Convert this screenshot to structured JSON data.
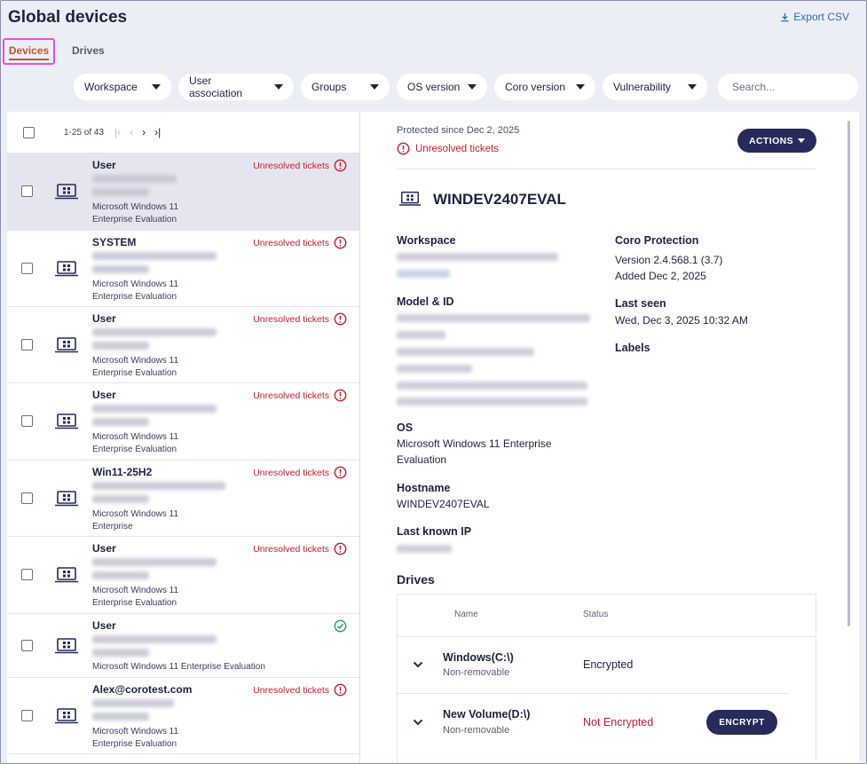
{
  "page": {
    "title": "Global devices",
    "export_label": "Export CSV"
  },
  "tabs": [
    {
      "label": "Devices"
    },
    {
      "label": "Drives"
    }
  ],
  "filters": [
    {
      "label": "Workspace"
    },
    {
      "label": "User association"
    },
    {
      "label": "Groups"
    },
    {
      "label": "OS version"
    },
    {
      "label": "Coro version"
    },
    {
      "label": "Vulnerability"
    }
  ],
  "search": {
    "placeholder": "Search..."
  },
  "pager": {
    "range": "1-25 of 43"
  },
  "devices": [
    {
      "owner": "User",
      "status": "Unresolved tickets",
      "os1": "Microsoft Windows 11",
      "os2": "Enterprise Evaluation"
    },
    {
      "owner": "SYSTEM",
      "status": "Unresolved tickets",
      "os1": "Microsoft Windows 11",
      "os2": "Enterprise Evaluation"
    },
    {
      "owner": "User",
      "status": "Unresolved tickets",
      "os1": "Microsoft Windows 11",
      "os2": "Enterprise Evaluation"
    },
    {
      "owner": "User",
      "status": "Unresolved tickets",
      "os1": "Microsoft Windows 11",
      "os2": "Enterprise Evaluation"
    },
    {
      "owner": "Win11-25H2",
      "status": "Unresolved tickets",
      "os1": "Microsoft Windows 11",
      "os2": "Enterprise"
    },
    {
      "owner": "User",
      "status": "Unresolved tickets",
      "os1": "Microsoft Windows 11",
      "os2": "Enterprise Evaluation"
    },
    {
      "owner": "User",
      "status": "",
      "os1": "Microsoft Windows 11 Enterprise Evaluation",
      "os2": ""
    },
    {
      "owner": "Alex@corotest.com",
      "status": "Unresolved tickets",
      "os1": "Microsoft Windows 11",
      "os2": "Enterprise Evaluation"
    }
  ],
  "detail": {
    "protected_since": "Protected since Dec 2, 2025",
    "unresolved": "Unresolved tickets",
    "actions_label": "ACTIONS",
    "device_name": "WINDEV2407EVAL",
    "workspace_label": "Workspace",
    "model_label": "Model & ID",
    "os_label": "OS",
    "os_line1": "Microsoft Windows 11 Enterprise",
    "os_line2": "Evaluation",
    "hostname_label": "Hostname",
    "hostname": "WINDEV2407EVAL",
    "ip_label": "Last known IP",
    "coro_label": "Coro Protection",
    "coro_version": "Version 2.4.568.1 (3.7)",
    "coro_added": "Added Dec 2, 2025",
    "last_seen_label": "Last seen",
    "last_seen": "Wed, Dec 3, 2025 10:32 AM",
    "labels_label": "Labels"
  },
  "drives": {
    "title": "Drives",
    "col_name": "Name",
    "col_status": "Status",
    "rows": [
      {
        "name": "Windows(C:\\)",
        "type": "Non-removable",
        "status": "Encrypted"
      },
      {
        "name": "New Volume(D:\\)",
        "type": "Non-removable",
        "status": "Not Encrypted",
        "action": "ENCRYPT"
      }
    ]
  },
  "colors": {
    "accent_navy": "#262b5b",
    "alert_red": "#c4202d",
    "ok_green": "#2e9e5b",
    "tab_active": "#c4522a"
  }
}
